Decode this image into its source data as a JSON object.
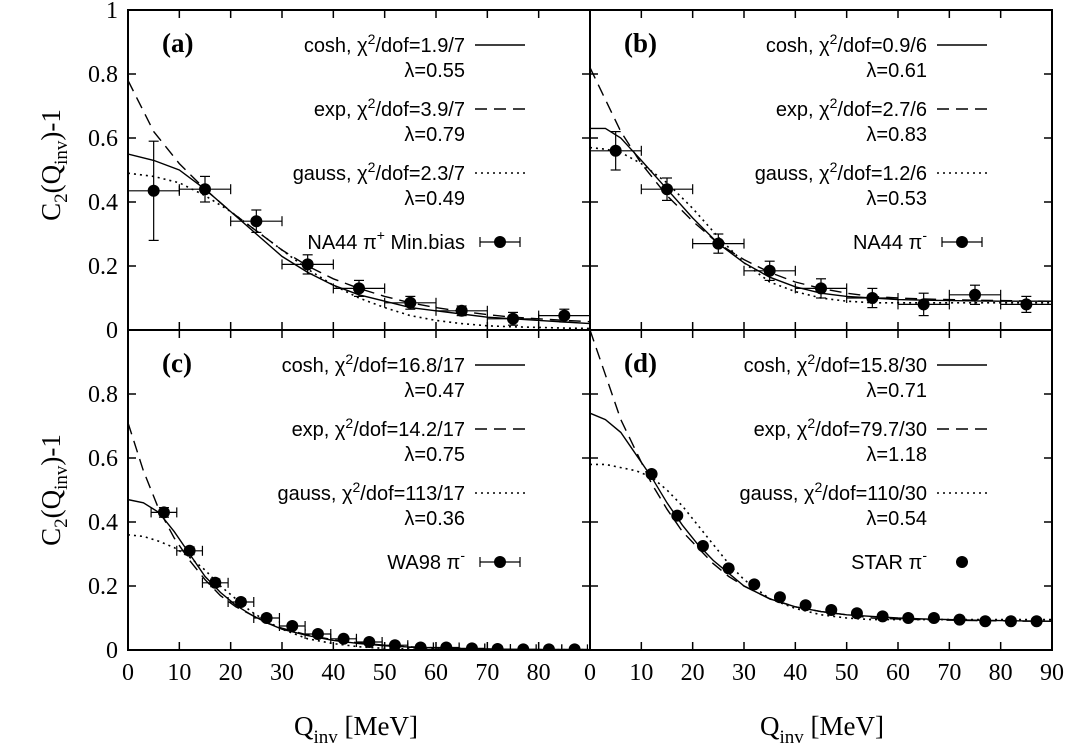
{
  "figure": {
    "ylabel": {
      "main": "C",
      "sub1": "2",
      "mid": "(Q",
      "sub2": "inv",
      "end": ")-1"
    },
    "xlabel": {
      "main": "Q",
      "sub": "inv",
      "end": " [MeV]"
    },
    "colors": {
      "line": "#000000",
      "background": "#ffffff"
    }
  },
  "chart_data": [
    {
      "type": "line",
      "panel": "(a)",
      "xlim": [
        0,
        90
      ],
      "ylim": [
        0,
        1
      ],
      "xticks": [
        0,
        10,
        20,
        30,
        40,
        50,
        60,
        70,
        80
      ],
      "yticks": [
        0,
        0.2,
        0.4,
        0.6,
        0.8,
        1
      ],
      "ytick_labels": [
        "0",
        "0.2",
        "0.4",
        "0.6",
        "0.8",
        "1"
      ],
      "fits": [
        {
          "name": "cosh",
          "style": "solid",
          "chi2": "1.9/7",
          "lambda": "0.55",
          "x": [
            0,
            5,
            10,
            15,
            20,
            25,
            30,
            35,
            40,
            45,
            50,
            55,
            60,
            65,
            70,
            75,
            80,
            85,
            90
          ],
          "y": [
            0.55,
            0.53,
            0.5,
            0.44,
            0.37,
            0.3,
            0.23,
            0.18,
            0.14,
            0.11,
            0.09,
            0.07,
            0.06,
            0.05,
            0.04,
            0.035,
            0.03,
            0.025,
            0.02
          ]
        },
        {
          "name": "exp",
          "style": "dashed",
          "chi2": "3.9/7",
          "lambda": "0.79",
          "x": [
            0,
            5,
            10,
            15,
            20,
            25,
            30,
            35,
            40,
            45,
            50,
            55,
            60,
            65,
            70,
            75,
            80,
            85,
            90
          ],
          "y": [
            0.78,
            0.62,
            0.52,
            0.44,
            0.37,
            0.31,
            0.25,
            0.2,
            0.16,
            0.13,
            0.105,
            0.085,
            0.07,
            0.058,
            0.048,
            0.04,
            0.035,
            0.03,
            0.026
          ]
        },
        {
          "name": "gauss",
          "style": "dotted",
          "chi2": "2.3/7",
          "lambda": "0.49",
          "x": [
            0,
            5,
            10,
            15,
            20,
            25,
            30,
            35,
            40,
            45,
            50,
            55,
            60,
            65,
            70,
            75,
            80,
            85,
            90
          ],
          "y": [
            0.49,
            0.48,
            0.46,
            0.42,
            0.37,
            0.31,
            0.25,
            0.19,
            0.14,
            0.1,
            0.07,
            0.045,
            0.03,
            0.02,
            0.013,
            0.01,
            0.008,
            0.006,
            0.005
          ]
        }
      ],
      "data": {
        "name": "NA44 π⁺ Min.bias",
        "label_main": "NA44 π",
        "label_sup": "+",
        "label_tail": " Min.bias",
        "xerr": true,
        "x": [
          5,
          15,
          25,
          35,
          45,
          55,
          65,
          75,
          85
        ],
        "y": [
          0.435,
          0.44,
          0.34,
          0.205,
          0.13,
          0.085,
          0.06,
          0.035,
          0.045
        ],
        "yerr": [
          0.155,
          0.04,
          0.035,
          0.03,
          0.025,
          0.02,
          0.015,
          0.02,
          0.02
        ]
      }
    },
    {
      "type": "line",
      "panel": "(b)",
      "xlim": [
        0,
        90
      ],
      "ylim": [
        0,
        1
      ],
      "xticks": [
        0,
        10,
        20,
        30,
        40,
        50,
        60,
        70,
        80,
        90
      ],
      "yticks": [],
      "ytick_labels": [],
      "fits": [
        {
          "name": "cosh",
          "style": "solid",
          "chi2": "0.9/6",
          "lambda": "0.61",
          "x": [
            0,
            3,
            6,
            10,
            15,
            20,
            25,
            30,
            35,
            40,
            45,
            50,
            55,
            60,
            65,
            70,
            75,
            80,
            85,
            90
          ],
          "y": [
            0.63,
            0.63,
            0.6,
            0.53,
            0.44,
            0.35,
            0.27,
            0.21,
            0.165,
            0.135,
            0.115,
            0.105,
            0.1,
            0.095,
            0.093,
            0.092,
            0.091,
            0.09,
            0.09,
            0.09
          ]
        },
        {
          "name": "exp",
          "style": "dashed",
          "chi2": "2.7/6",
          "lambda": "0.83",
          "x": [
            0,
            3,
            6,
            10,
            15,
            20,
            25,
            30,
            35,
            40,
            45,
            50,
            55,
            60,
            65,
            70,
            75,
            80,
            85,
            90
          ],
          "y": [
            0.82,
            0.72,
            0.62,
            0.52,
            0.42,
            0.34,
            0.27,
            0.22,
            0.18,
            0.15,
            0.13,
            0.115,
            0.105,
            0.1,
            0.097,
            0.095,
            0.093,
            0.092,
            0.091,
            0.09
          ]
        },
        {
          "name": "gauss",
          "style": "dotted",
          "chi2": "1.2/6",
          "lambda": "0.53",
          "x": [
            0,
            3,
            6,
            10,
            15,
            20,
            25,
            30,
            35,
            40,
            45,
            50,
            55,
            60,
            65,
            70,
            75,
            80,
            85,
            90
          ],
          "y": [
            0.57,
            0.565,
            0.555,
            0.52,
            0.46,
            0.38,
            0.29,
            0.21,
            0.15,
            0.12,
            0.1,
            0.09,
            0.085,
            0.085,
            0.085,
            0.085,
            0.085,
            0.085,
            0.085,
            0.085
          ]
        }
      ],
      "data": {
        "name": "NA44 π⁻",
        "label_main": "NA44 π",
        "label_sup": "-",
        "label_tail": "",
        "xerr": true,
        "x": [
          5,
          15,
          25,
          35,
          45,
          55,
          65,
          75,
          85
        ],
        "y": [
          0.56,
          0.44,
          0.27,
          0.185,
          0.13,
          0.1,
          0.08,
          0.11,
          0.08
        ],
        "yerr": [
          0.06,
          0.035,
          0.03,
          0.03,
          0.03,
          0.03,
          0.035,
          0.03,
          0.025
        ]
      }
    },
    {
      "type": "line",
      "panel": "(c)",
      "xlim": [
        0,
        90
      ],
      "ylim": [
        0,
        1
      ],
      "xticks": [
        0,
        10,
        20,
        30,
        40,
        50,
        60,
        70,
        80
      ],
      "yticks": [
        0,
        0.2,
        0.4,
        0.6,
        0.8
      ],
      "ytick_labels": [
        "0",
        "0.2",
        "0.4",
        "0.6",
        "0.8"
      ],
      "fits": [
        {
          "name": "cosh",
          "style": "solid",
          "chi2": "16.8/17",
          "lambda": "0.47",
          "x": [
            0,
            3,
            6,
            9,
            12,
            15,
            18,
            21,
            24,
            27,
            30,
            35,
            40,
            45,
            50,
            55,
            60,
            65,
            70,
            75,
            80,
            85,
            90
          ],
          "y": [
            0.47,
            0.46,
            0.43,
            0.37,
            0.3,
            0.23,
            0.18,
            0.14,
            0.11,
            0.085,
            0.065,
            0.045,
            0.03,
            0.02,
            0.013,
            0.009,
            0.006,
            0.004,
            0.003,
            0.002,
            0.001,
            0.001,
            0.001
          ]
        },
        {
          "name": "exp",
          "style": "dashed",
          "chi2": "14.2/17",
          "lambda": "0.75",
          "x": [
            0,
            3,
            6,
            9,
            12,
            15,
            18,
            21,
            24,
            27,
            30,
            35,
            40,
            45,
            50,
            55,
            60,
            65,
            70,
            75,
            80,
            85,
            90
          ],
          "y": [
            0.71,
            0.56,
            0.44,
            0.35,
            0.28,
            0.22,
            0.17,
            0.135,
            0.11,
            0.085,
            0.068,
            0.047,
            0.032,
            0.022,
            0.015,
            0.01,
            0.007,
            0.005,
            0.003,
            0.002,
            0.002,
            0.001,
            0.001
          ]
        },
        {
          "name": "gauss",
          "style": "dotted",
          "chi2": "113/17",
          "lambda": "0.36",
          "x": [
            0,
            3,
            6,
            9,
            12,
            15,
            18,
            21,
            24,
            27,
            30,
            35,
            40,
            45,
            50,
            55,
            60,
            65,
            70,
            75,
            80,
            85,
            90
          ],
          "y": [
            0.36,
            0.355,
            0.34,
            0.32,
            0.29,
            0.25,
            0.2,
            0.16,
            0.12,
            0.09,
            0.065,
            0.035,
            0.02,
            0.01,
            0.005,
            0.003,
            0.002,
            0.001,
            0.001,
            0.001,
            0.001,
            0.001,
            0.001
          ]
        }
      ],
      "data": {
        "name": "WA98 π⁻",
        "label_main": "WA98 π",
        "label_sup": "-",
        "label_tail": "",
        "xerr": true,
        "x": [
          7,
          12,
          17,
          22,
          27,
          32,
          37,
          42,
          47,
          52,
          57,
          62,
          67,
          72,
          77,
          82,
          87
        ],
        "y": [
          0.43,
          0.31,
          0.21,
          0.15,
          0.1,
          0.075,
          0.05,
          0.035,
          0.025,
          0.015,
          0.008,
          0.008,
          0.005,
          0.003,
          0.002,
          0.002,
          0.002
        ],
        "yerr": [
          0.015,
          0.012,
          0.012,
          0.01,
          0.01,
          0.008,
          0.006,
          0.005,
          0.005,
          0.004,
          0.004,
          0.004,
          0.003,
          0.003,
          0.003,
          0.003,
          0.003
        ]
      }
    },
    {
      "type": "line",
      "panel": "(d)",
      "xlim": [
        0,
        90
      ],
      "ylim": [
        0,
        1
      ],
      "xticks": [
        0,
        10,
        20,
        30,
        40,
        50,
        60,
        70,
        80,
        90
      ],
      "yticks": [],
      "ytick_labels": [],
      "fits": [
        {
          "name": "cosh",
          "style": "solid",
          "chi2": "15.8/30",
          "lambda": "0.71",
          "x": [
            0,
            3,
            6,
            9,
            12,
            15,
            18,
            21,
            24,
            27,
            30,
            35,
            40,
            45,
            50,
            55,
            60,
            65,
            70,
            75,
            80,
            85,
            90
          ],
          "y": [
            0.74,
            0.72,
            0.68,
            0.61,
            0.54,
            0.46,
            0.39,
            0.33,
            0.28,
            0.24,
            0.2,
            0.16,
            0.135,
            0.12,
            0.11,
            0.105,
            0.1,
            0.097,
            0.095,
            0.093,
            0.092,
            0.091,
            0.09
          ]
        },
        {
          "name": "exp",
          "style": "dashed",
          "chi2": "79.7/30",
          "lambda": "1.18",
          "x": [
            0,
            3,
            6,
            9,
            12,
            15,
            18,
            21,
            24,
            27,
            30,
            35,
            40,
            45,
            50,
            55,
            60,
            65,
            70,
            75,
            80,
            85,
            90
          ],
          "y": [
            1.0,
            0.86,
            0.72,
            0.62,
            0.52,
            0.44,
            0.37,
            0.32,
            0.27,
            0.23,
            0.2,
            0.16,
            0.135,
            0.12,
            0.11,
            0.1,
            0.097,
            0.095,
            0.093,
            0.092,
            0.091,
            0.09,
            0.09
          ]
        },
        {
          "name": "gauss",
          "style": "dotted",
          "chi2": "110/30",
          "lambda": "0.54",
          "x": [
            0,
            3,
            6,
            9,
            12,
            15,
            18,
            21,
            24,
            27,
            30,
            35,
            40,
            45,
            50,
            55,
            60,
            65,
            70,
            75,
            80,
            85,
            90
          ],
          "y": [
            0.58,
            0.58,
            0.57,
            0.56,
            0.54,
            0.5,
            0.45,
            0.39,
            0.33,
            0.27,
            0.22,
            0.16,
            0.13,
            0.11,
            0.1,
            0.095,
            0.095,
            0.095,
            0.095,
            0.095,
            0.095,
            0.095,
            0.095
          ]
        }
      ],
      "data": {
        "name": "STAR π⁻",
        "label_main": "STAR π",
        "label_sup": "-",
        "label_tail": "",
        "xerr": false,
        "x": [
          12,
          17,
          22,
          27,
          32,
          37,
          42,
          47,
          52,
          57,
          62,
          67,
          72,
          77,
          82,
          87
        ],
        "y": [
          0.55,
          0.42,
          0.325,
          0.255,
          0.205,
          0.165,
          0.14,
          0.125,
          0.115,
          0.105,
          0.1,
          0.1,
          0.095,
          0.09,
          0.09,
          0.09
        ],
        "yerr": [
          0,
          0,
          0,
          0,
          0,
          0,
          0,
          0,
          0,
          0,
          0,
          0,
          0,
          0,
          0,
          0
        ]
      }
    }
  ]
}
